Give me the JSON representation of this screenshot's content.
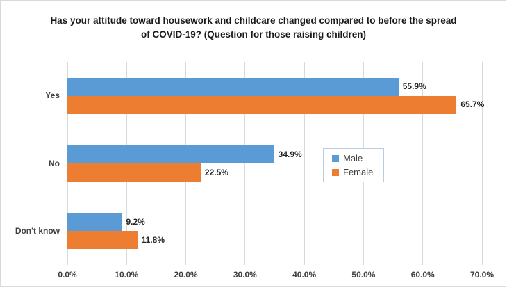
{
  "chart_data": {
    "type": "bar",
    "orientation": "horizontal",
    "title": "Has your attitude toward housework and childcare changed compared to before the spread of COVID-19? (Question for those raising children)",
    "categories": [
      "Yes",
      "No",
      "Don't know"
    ],
    "series": [
      {
        "name": "Male",
        "color": "#5B9BD5",
        "values": [
          55.9,
          34.9,
          9.2
        ],
        "labels": [
          "55.9%",
          "34.9%",
          "9.2%"
        ]
      },
      {
        "name": "Female",
        "color": "#ED7D31",
        "values": [
          65.7,
          22.5,
          11.8
        ],
        "labels": [
          "65.7%",
          "22.5%",
          "11.8%"
        ]
      }
    ],
    "xlim": [
      0,
      70
    ],
    "x_ticks": [
      "0.0%",
      "10.0%",
      "20.0%",
      "30.0%",
      "40.0%",
      "50.0%",
      "60.0%",
      "70.0%"
    ],
    "grid": true,
    "legend_position": "middle-right"
  },
  "colors": {
    "male": "#5B9BD5",
    "female": "#ED7D31",
    "gridline": "#D9D9D9",
    "axis_text": "#3f3f3f",
    "data_label_text": "#262626",
    "chart_border": "#D9D9D9",
    "legend_border": "#B7CCE2"
  }
}
